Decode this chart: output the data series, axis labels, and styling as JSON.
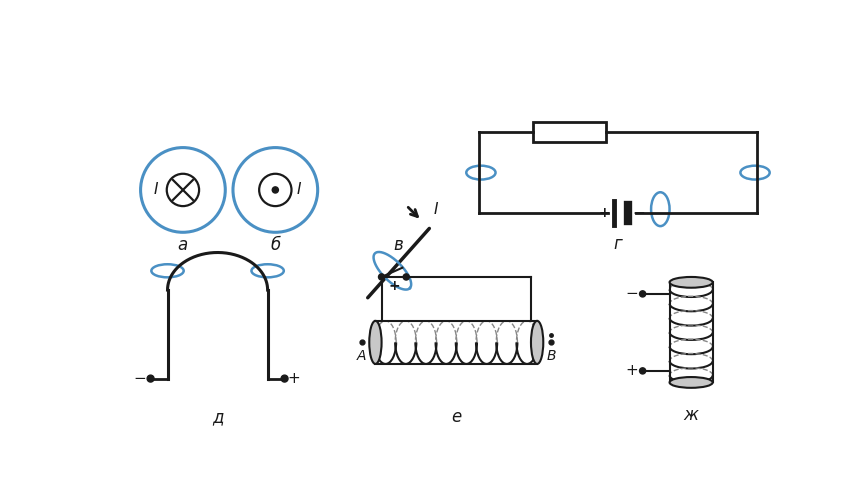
{
  "bg_color": "#ffffff",
  "blue": "#4a90c4",
  "black": "#1a1a1a",
  "label_a": "а",
  "label_b": "б",
  "label_v": "в",
  "label_g": "г",
  "label_d": "д",
  "label_e": "е",
  "label_zh": "ж"
}
